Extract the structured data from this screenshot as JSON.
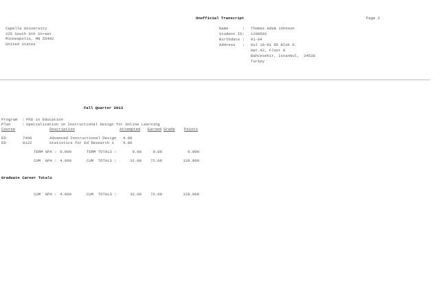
{
  "header": {
    "title": "Unofficial Transcript",
    "page": "Page 2"
  },
  "institution": {
    "lines": [
      "Capella University",
      "225 South 6th Street",
      "Minneapolis, MN 55402",
      "United States"
    ]
  },
  "student": {
    "name_label": "Name      :",
    "name": "Thomas Adam Johnson",
    "id_label": "Student ID:",
    "id": "1298593",
    "birth_label": "Birthdate :",
    "birthdate": "01-04",
    "address_label": "Address   :",
    "address": [
      "Gul 10-01 D5 Blok D.",
      "Apt.42, Floor 8",
      "Bahcesehir, Istanbul,  34538",
      "Turkey"
    ]
  },
  "term": {
    "title": "Fall Quarter 2013",
    "program_label": "Program  :",
    "program": "PhD in Education",
    "plan_label": "Plan     :",
    "plan": "Specialization in Instructional Design for Online Learning",
    "columns": [
      "Course",
      "Description",
      "Attempted",
      "Earned",
      "Grade",
      "Points"
    ],
    "courses": [
      {
        "subject": "ED",
        "number": "7496",
        "description": "Advanced Instructional Design",
        "attempted": "4.00"
      },
      {
        "subject": "ED",
        "number": "8122",
        "description": "Statistics for Ed Research 1",
        "attempted": "4.00"
      }
    ],
    "term_gpa_label": "TERM GPA :",
    "term_gpa": "0.000",
    "term_totals_label": "TERM TOTALS :",
    "term_attempted": "0.00",
    "term_earned": "0.00",
    "term_points": "0.000",
    "cum_gpa_label": "CUM  GPA :",
    "cum_gpa": "4.000",
    "cum_totals_label": "CUM  TOTALS :",
    "cum_attempted": "32.00",
    "cum_earned": "72.00",
    "cum_points": "128.000"
  },
  "career": {
    "title": "Graduate Career Totals",
    "cum_gpa_label": "CUM  GPA :",
    "cum_gpa": "4.000",
    "cum_totals_label": "CUM  TOTALS :",
    "cum_attempted": "32.00",
    "cum_earned": "72.00",
    "cum_points": "128.000"
  }
}
